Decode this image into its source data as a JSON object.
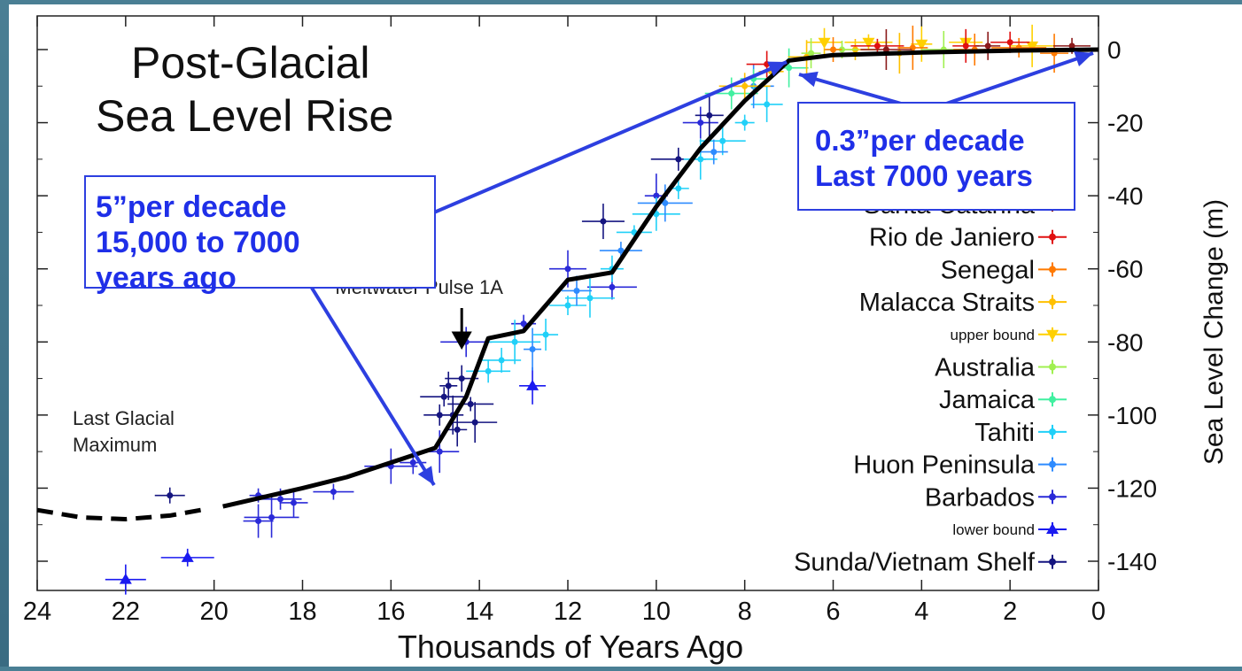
{
  "chart_data": {
    "type": "scatter",
    "title_lines": [
      "Post-Glacial",
      "Sea Level Rise"
    ],
    "xlabel": "Thousands of Years Ago",
    "ylabel": "Sea Level Change (m)",
    "xlim": [
      24,
      0
    ],
    "ylim": [
      -150,
      5
    ],
    "x_ticks": [
      24,
      22,
      20,
      18,
      16,
      14,
      12,
      10,
      8,
      6,
      4,
      2,
      0
    ],
    "y_ticks": [
      0,
      -20,
      -40,
      -60,
      -80,
      -100,
      -120,
      -140
    ],
    "grid": false,
    "legend_position": "right",
    "legend": [
      {
        "name": "Santa Catarina",
        "color": "#8b1a1a",
        "marker": "dot"
      },
      {
        "name": "Rio de Janiero",
        "color": "#e01010",
        "marker": "dot"
      },
      {
        "name": "Senegal",
        "color": "#ff7a00",
        "marker": "dot"
      },
      {
        "name": "Malacca Straits",
        "color": "#ffc000",
        "marker": "dot"
      },
      {
        "name": "upper bound",
        "color": "#ffd000",
        "marker": "triangle-down",
        "small": true
      },
      {
        "name": "Australia",
        "color": "#a0f050",
        "marker": "dot"
      },
      {
        "name": "Jamaica",
        "color": "#40f0a0",
        "marker": "dot"
      },
      {
        "name": "Tahiti",
        "color": "#20d0f8",
        "marker": "dot"
      },
      {
        "name": "Huon Peninsula",
        "color": "#2e8bff",
        "marker": "dot"
      },
      {
        "name": "Barbados",
        "color": "#2a2ad8",
        "marker": "dot"
      },
      {
        "name": "lower bound",
        "color": "#1a1af0",
        "marker": "triangle-up",
        "small": true
      },
      {
        "name": "Sunda/Vietnam Shelf",
        "color": "#151580",
        "marker": "dot"
      }
    ],
    "trend_line": {
      "solid": [
        [
          19.8,
          -125
        ],
        [
          18,
          -120
        ],
        [
          17,
          -117
        ],
        [
          15,
          -109
        ],
        [
          14.3,
          -95
        ],
        [
          13.8,
          -79
        ],
        [
          13,
          -77
        ],
        [
          12,
          -63
        ],
        [
          11,
          -61
        ],
        [
          10,
          -43
        ],
        [
          9,
          -27
        ],
        [
          8,
          -14
        ],
        [
          7,
          -3
        ],
        [
          6,
          -1.5
        ],
        [
          4,
          -0.8
        ],
        [
          2,
          -0.3
        ],
        [
          0,
          0
        ]
      ],
      "dashed": [
        [
          24,
          -126
        ],
        [
          23,
          -128
        ],
        [
          22,
          -128.5
        ],
        [
          21,
          -127.5
        ],
        [
          20.3,
          -126
        ]
      ]
    },
    "data_points": [
      {
        "series": "Barbados",
        "x": 19,
        "y": -122
      },
      {
        "series": "Barbados",
        "x": 19,
        "y": -129
      },
      {
        "series": "Barbados",
        "x": 18.5,
        "y": -123
      },
      {
        "series": "Barbados",
        "x": 18.7,
        "y": -128
      },
      {
        "series": "Barbados",
        "x": 18.2,
        "y": -124
      },
      {
        "series": "Barbados",
        "x": 17.3,
        "y": -121
      },
      {
        "series": "Barbados",
        "x": 16,
        "y": -114
      },
      {
        "series": "Barbados",
        "x": 15.5,
        "y": -113
      },
      {
        "series": "Barbados",
        "x": 14.9,
        "y": -110
      },
      {
        "series": "Barbados",
        "x": 14.3,
        "y": -80
      },
      {
        "series": "Barbados",
        "x": 13,
        "y": -75
      },
      {
        "series": "Barbados",
        "x": 12,
        "y": -60
      },
      {
        "series": "Barbados",
        "x": 11,
        "y": -65
      },
      {
        "series": "Barbados",
        "x": 10,
        "y": -40
      },
      {
        "series": "Barbados",
        "x": 9,
        "y": -20
      },
      {
        "series": "Sunda/Vietnam Shelf",
        "x": 14.8,
        "y": -95
      },
      {
        "series": "Sunda/Vietnam Shelf",
        "x": 14.6,
        "y": -100
      },
      {
        "series": "Sunda/Vietnam Shelf",
        "x": 14.4,
        "y": -90
      },
      {
        "series": "Sunda/Vietnam Shelf",
        "x": 14.2,
        "y": -97
      },
      {
        "series": "Sunda/Vietnam Shelf",
        "x": 14.5,
        "y": -104
      },
      {
        "series": "Sunda/Vietnam Shelf",
        "x": 14.9,
        "y": -100
      },
      {
        "series": "Sunda/Vietnam Shelf",
        "x": 14.1,
        "y": -102
      },
      {
        "series": "Sunda/Vietnam Shelf",
        "x": 14.7,
        "y": -92
      },
      {
        "series": "Sunda/Vietnam Shelf",
        "x": 21,
        "y": -122
      },
      {
        "series": "Sunda/Vietnam Shelf",
        "x": 11.2,
        "y": -47
      },
      {
        "series": "Sunda/Vietnam Shelf",
        "x": 9.5,
        "y": -30
      },
      {
        "series": "Sunda/Vietnam Shelf",
        "x": 8.8,
        "y": -18
      },
      {
        "series": "lower bound",
        "x": 22,
        "y": -145
      },
      {
        "series": "lower bound",
        "x": 20.6,
        "y": -139
      },
      {
        "series": "lower bound",
        "x": 12.8,
        "y": -92
      },
      {
        "series": "Tahiti",
        "x": 13.5,
        "y": -85
      },
      {
        "series": "Tahiti",
        "x": 13.2,
        "y": -80
      },
      {
        "series": "Tahiti",
        "x": 12.5,
        "y": -78
      },
      {
        "series": "Tahiti",
        "x": 12,
        "y": -70
      },
      {
        "series": "Tahiti",
        "x": 11.5,
        "y": -68
      },
      {
        "series": "Tahiti",
        "x": 11,
        "y": -60
      },
      {
        "series": "Tahiti",
        "x": 10.5,
        "y": -50
      },
      {
        "series": "Tahiti",
        "x": 10,
        "y": -45
      },
      {
        "series": "Tahiti",
        "x": 9.5,
        "y": -38
      },
      {
        "series": "Tahiti",
        "x": 9,
        "y": -30
      },
      {
        "series": "Tahiti",
        "x": 8.5,
        "y": -25
      },
      {
        "series": "Tahiti",
        "x": 8,
        "y": -20
      },
      {
        "series": "Tahiti",
        "x": 7.5,
        "y": -15
      },
      {
        "series": "Tahiti",
        "x": 13.8,
        "y": -88
      },
      {
        "series": "Huon Peninsula",
        "x": 12.8,
        "y": -82
      },
      {
        "series": "Huon Peninsula",
        "x": 11.8,
        "y": -66
      },
      {
        "series": "Huon Peninsula",
        "x": 10.8,
        "y": -55
      },
      {
        "series": "Huon Peninsula",
        "x": 9.8,
        "y": -42
      },
      {
        "series": "Huon Peninsula",
        "x": 8.7,
        "y": -28
      },
      {
        "series": "Huon Peninsula",
        "x": 7.8,
        "y": -10
      },
      {
        "series": "Jamaica",
        "x": 8.3,
        "y": -12
      },
      {
        "series": "Jamaica",
        "x": 7.8,
        "y": -8
      },
      {
        "series": "Jamaica",
        "x": 7,
        "y": -5
      },
      {
        "series": "Malacca Straits",
        "x": 8,
        "y": -10
      },
      {
        "series": "Malacca Straits",
        "x": 7.4,
        "y": -6
      },
      {
        "series": "Malacca Straits",
        "x": 6.6,
        "y": -2
      },
      {
        "series": "Malacca Straits",
        "x": 5.5,
        "y": 0
      },
      {
        "series": "Malacca Straits",
        "x": 4.5,
        "y": -1
      },
      {
        "series": "upper bound",
        "x": 6.2,
        "y": 2
      },
      {
        "series": "upper bound",
        "x": 5.2,
        "y": 2
      },
      {
        "series": "upper bound",
        "x": 4,
        "y": 1.5
      },
      {
        "series": "upper bound",
        "x": 3,
        "y": 2
      },
      {
        "series": "upper bound",
        "x": 1.5,
        "y": 1
      },
      {
        "series": "Australia",
        "x": 6.5,
        "y": -1
      },
      {
        "series": "Australia",
        "x": 5.8,
        "y": 0
      },
      {
        "series": "Australia",
        "x": 3.5,
        "y": 0
      },
      {
        "series": "Senegal",
        "x": 6,
        "y": 0
      },
      {
        "series": "Senegal",
        "x": 4.2,
        "y": 0.5
      },
      {
        "series": "Senegal",
        "x": 2.8,
        "y": 0
      },
      {
        "series": "Senegal",
        "x": 1.8,
        "y": 0.5
      },
      {
        "series": "Senegal",
        "x": 1,
        "y": -1
      },
      {
        "series": "Rio de Janiero",
        "x": 7.5,
        "y": -4
      },
      {
        "series": "Rio de Janiero",
        "x": 5,
        "y": 1
      },
      {
        "series": "Rio de Janiero",
        "x": 3,
        "y": 1
      },
      {
        "series": "Rio de Janiero",
        "x": 2,
        "y": 2
      },
      {
        "series": "Santa Catarina",
        "x": 4.8,
        "y": 0
      },
      {
        "series": "Santa Catarina",
        "x": 2.5,
        "y": 1
      },
      {
        "series": "Santa Catarina",
        "x": 0.6,
        "y": 1
      }
    ],
    "annotations": [
      {
        "text": "Meltwater Pulse 1A",
        "x": 14.4,
        "y": -68
      },
      {
        "text_lines": [
          "Last Glacial",
          "Maximum"
        ],
        "x": 23,
        "y": -102
      }
    ]
  },
  "callouts": [
    {
      "lines": [
        "5”per decade",
        "15,000 to 7000",
        "years ago"
      ]
    },
    {
      "lines": [
        "0.3”per decade",
        "Last 7000 years"
      ]
    }
  ],
  "colors": {
    "background": "#4a7f94",
    "plot_background": "#ffffff",
    "arrow": "#2d3fe0",
    "callout_text": "#1f2fe8",
    "trend_line": "#000000"
  }
}
